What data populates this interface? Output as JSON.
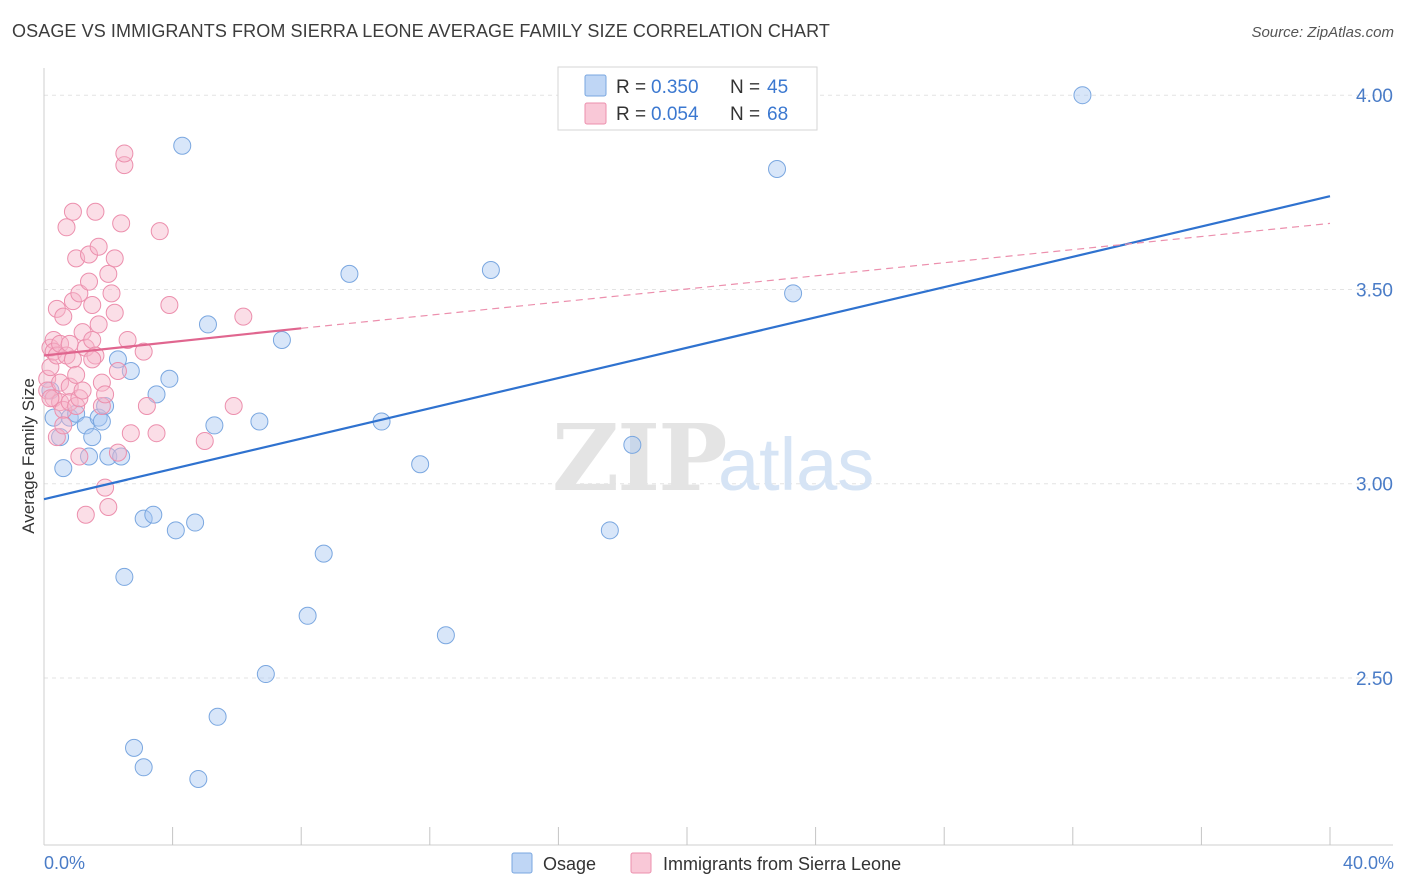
{
  "title": "OSAGE VS IMMIGRANTS FROM SIERRA LEONE AVERAGE FAMILY SIZE CORRELATION CHART",
  "source": "Source: ZipAtlas.com",
  "watermark": {
    "zip": "ZIP",
    "atlas": "atlas"
  },
  "legend": {
    "r_label": "R =",
    "n_label": "N =",
    "rows": [
      {
        "r": "0.350",
        "n": "45",
        "color": "#a9c8f2"
      },
      {
        "r": "0.054",
        "n": "68",
        "color": "#f7b6ca"
      }
    ]
  },
  "chart_data": {
    "type": "scatter",
    "title": "OSAGE VS IMMIGRANTS FROM SIERRA LEONE AVERAGE FAMILY SIZE CORRELATION CHART",
    "xlabel": "",
    "ylabel": "Average Family Size",
    "xlim": [
      0,
      40
    ],
    "ylim": [
      2.07,
      4.07
    ],
    "x_tick_labels": [
      "0.0%",
      "40.0%"
    ],
    "y_ticks": [
      2.5,
      3.0,
      3.5,
      4.0
    ],
    "y_tick_labels": [
      "2.50",
      "3.00",
      "3.50",
      "4.00"
    ],
    "grid": true,
    "series": [
      {
        "name": "Osage",
        "color": "#a9c8f2",
        "stroke": "#7aa7e0",
        "r": 0.35,
        "n": 45,
        "points": [
          [
            0.3,
            3.17
          ],
          [
            0.5,
            3.12
          ],
          [
            0.6,
            3.04
          ],
          [
            0.8,
            3.17
          ],
          [
            1.0,
            3.18
          ],
          [
            1.3,
            3.15
          ],
          [
            1.4,
            3.07
          ],
          [
            1.5,
            3.12
          ],
          [
            1.7,
            3.17
          ],
          [
            1.9,
            3.2
          ],
          [
            2.0,
            3.07
          ],
          [
            2.3,
            3.32
          ],
          [
            2.4,
            3.07
          ],
          [
            2.5,
            2.76
          ],
          [
            2.7,
            3.29
          ],
          [
            2.8,
            2.32
          ],
          [
            3.1,
            2.91
          ],
          [
            3.1,
            2.27
          ],
          [
            3.4,
            2.92
          ],
          [
            3.5,
            3.23
          ],
          [
            3.9,
            3.27
          ],
          [
            4.1,
            2.88
          ],
          [
            4.3,
            3.87
          ],
          [
            4.7,
            2.9
          ],
          [
            4.8,
            2.24
          ],
          [
            5.1,
            3.41
          ],
          [
            5.3,
            3.15
          ],
          [
            5.4,
            2.4
          ],
          [
            6.7,
            3.16
          ],
          [
            6.9,
            2.51
          ],
          [
            7.4,
            3.37
          ],
          [
            8.2,
            2.66
          ],
          [
            8.7,
            2.82
          ],
          [
            9.5,
            3.54
          ],
          [
            10.5,
            3.16
          ],
          [
            11.7,
            3.05
          ],
          [
            12.5,
            2.61
          ],
          [
            13.9,
            3.55
          ],
          [
            17.6,
            2.88
          ],
          [
            18.3,
            3.1
          ],
          [
            22.8,
            3.81
          ],
          [
            23.3,
            3.49
          ],
          [
            32.3,
            4.0
          ],
          [
            0.2,
            3.24
          ],
          [
            1.8,
            3.16
          ]
        ],
        "trend": {
          "x": [
            0,
            40
          ],
          "y": [
            2.96,
            3.74
          ]
        }
      },
      {
        "name": "Immigrants from Sierra Leone",
        "color": "#f7b6ca",
        "stroke": "#ec8fad",
        "r": 0.054,
        "n": 68,
        "points": [
          [
            0.1,
            3.27
          ],
          [
            0.1,
            3.24
          ],
          [
            0.2,
            3.35
          ],
          [
            0.2,
            3.3
          ],
          [
            0.3,
            3.37
          ],
          [
            0.3,
            3.22
          ],
          [
            0.3,
            3.34
          ],
          [
            0.4,
            3.45
          ],
          [
            0.4,
            3.33
          ],
          [
            0.5,
            3.21
          ],
          [
            0.5,
            3.26
          ],
          [
            0.5,
            3.36
          ],
          [
            0.6,
            3.43
          ],
          [
            0.6,
            3.19
          ],
          [
            0.7,
            3.66
          ],
          [
            0.7,
            3.33
          ],
          [
            0.8,
            3.25
          ],
          [
            0.8,
            3.21
          ],
          [
            0.8,
            3.36
          ],
          [
            0.9,
            3.7
          ],
          [
            0.9,
            3.47
          ],
          [
            0.9,
            3.32
          ],
          [
            1.0,
            3.58
          ],
          [
            1.0,
            3.28
          ],
          [
            1.0,
            3.2
          ],
          [
            1.1,
            3.49
          ],
          [
            1.1,
            3.22
          ],
          [
            1.1,
            3.07
          ],
          [
            1.2,
            3.39
          ],
          [
            1.2,
            3.24
          ],
          [
            1.3,
            3.35
          ],
          [
            1.3,
            2.92
          ],
          [
            1.4,
            3.59
          ],
          [
            1.4,
            3.52
          ],
          [
            1.5,
            3.46
          ],
          [
            1.5,
            3.37
          ],
          [
            1.6,
            3.7
          ],
          [
            1.6,
            3.33
          ],
          [
            1.7,
            3.61
          ],
          [
            1.7,
            3.41
          ],
          [
            1.8,
            3.26
          ],
          [
            1.8,
            3.2
          ],
          [
            1.9,
            3.23
          ],
          [
            1.9,
            2.99
          ],
          [
            2.0,
            3.54
          ],
          [
            2.1,
            3.49
          ],
          [
            2.2,
            3.44
          ],
          [
            2.2,
            3.58
          ],
          [
            2.3,
            3.29
          ],
          [
            2.3,
            3.08
          ],
          [
            2.4,
            3.67
          ],
          [
            2.5,
            3.82
          ],
          [
            2.5,
            3.85
          ],
          [
            2.6,
            3.37
          ],
          [
            2.7,
            3.13
          ],
          [
            3.1,
            3.34
          ],
          [
            3.2,
            3.2
          ],
          [
            3.5,
            3.13
          ],
          [
            3.6,
            3.65
          ],
          [
            3.9,
            3.46
          ],
          [
            5.0,
            3.11
          ],
          [
            5.9,
            3.2
          ],
          [
            6.2,
            3.43
          ],
          [
            0.2,
            3.22
          ],
          [
            0.4,
            3.12
          ],
          [
            0.6,
            3.15
          ],
          [
            2.0,
            2.94
          ],
          [
            1.5,
            3.32
          ]
        ],
        "trend": {
          "x": [
            0,
            8
          ],
          "y": [
            3.33,
            3.4
          ]
        },
        "trend_extension": {
          "x": [
            8,
            40
          ],
          "y": [
            3.4,
            3.67
          ]
        }
      }
    ]
  }
}
